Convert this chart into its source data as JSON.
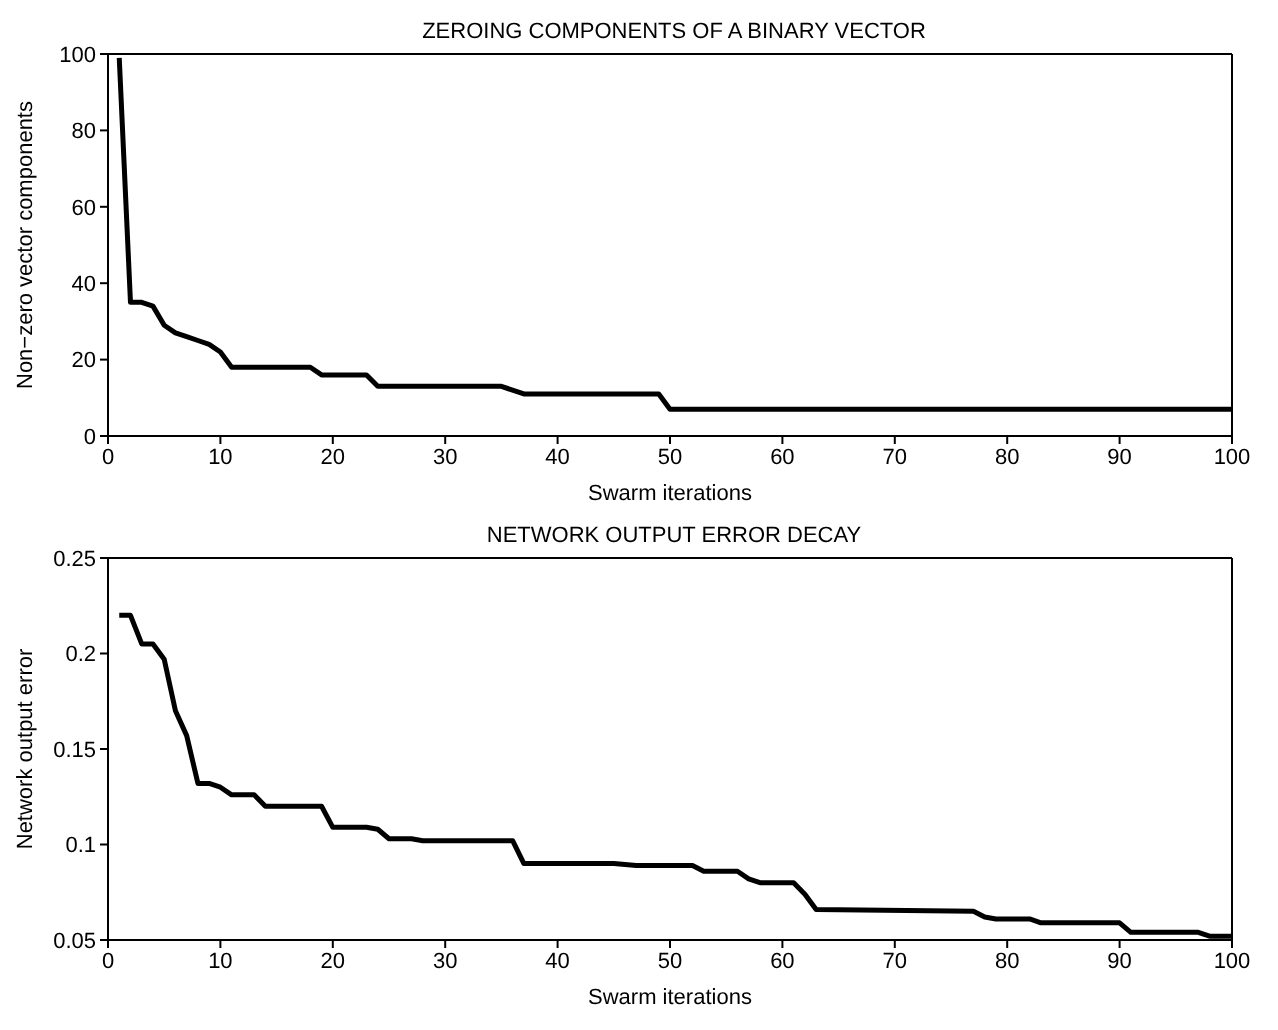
{
  "chart_data": [
    {
      "type": "line",
      "title": "ZEROING COMPONENTS OF A BINARY VECTOR",
      "xlabel": "Swarm iterations",
      "ylabel": "Non−zero vector components",
      "xlim": [
        0,
        100
      ],
      "ylim": [
        0,
        100
      ],
      "xticks": [
        0,
        10,
        20,
        30,
        40,
        50,
        60,
        70,
        80,
        90,
        100
      ],
      "yticks": [
        0,
        20,
        40,
        60,
        80,
        100
      ],
      "grid": false,
      "legend": false,
      "marker": "none",
      "line_style": "solid",
      "series": [
        {
          "color": "#000000",
          "x": [
            1,
            2,
            3,
            4,
            5,
            6,
            7,
            8,
            9,
            10,
            11,
            18,
            19,
            23,
            24,
            35,
            37,
            49,
            50,
            100
          ],
          "values": [
            99,
            35,
            35,
            34,
            29,
            27,
            26,
            25,
            24,
            22,
            18,
            18,
            16,
            16,
            13,
            13,
            11,
            11,
            7,
            7
          ]
        }
      ]
    },
    {
      "type": "line",
      "title": "NETWORK OUTPUT ERROR DECAY",
      "xlabel": "Swarm iterations",
      "ylabel": "Network output error",
      "xlim": [
        0,
        100
      ],
      "ylim": [
        0.05,
        0.25
      ],
      "xticks": [
        0,
        10,
        20,
        30,
        40,
        50,
        60,
        70,
        80,
        90,
        100
      ],
      "yticks": [
        0.05,
        0.1,
        0.15,
        0.2,
        0.25
      ],
      "grid": false,
      "legend": false,
      "marker": "none",
      "line_style": "solid",
      "series": [
        {
          "color": "#000000",
          "x": [
            1,
            2,
            3,
            4,
            5,
            6,
            7,
            8,
            9,
            10,
            11,
            13,
            14,
            19,
            20,
            23,
            24,
            25,
            27,
            28,
            36,
            37,
            45,
            47,
            52,
            53,
            56,
            57,
            58,
            61,
            62,
            63,
            77,
            78,
            79,
            82,
            83,
            90,
            91,
            97,
            98,
            100
          ],
          "values": [
            0.22,
            0.22,
            0.205,
            0.205,
            0.197,
            0.17,
            0.157,
            0.132,
            0.132,
            0.13,
            0.126,
            0.126,
            0.12,
            0.12,
            0.109,
            0.109,
            0.108,
            0.103,
            0.103,
            0.102,
            0.102,
            0.09,
            0.09,
            0.089,
            0.089,
            0.086,
            0.086,
            0.082,
            0.08,
            0.08,
            0.074,
            0.066,
            0.065,
            0.062,
            0.061,
            0.061,
            0.059,
            0.059,
            0.054,
            0.054,
            0.052,
            0.052
          ]
        }
      ]
    }
  ]
}
